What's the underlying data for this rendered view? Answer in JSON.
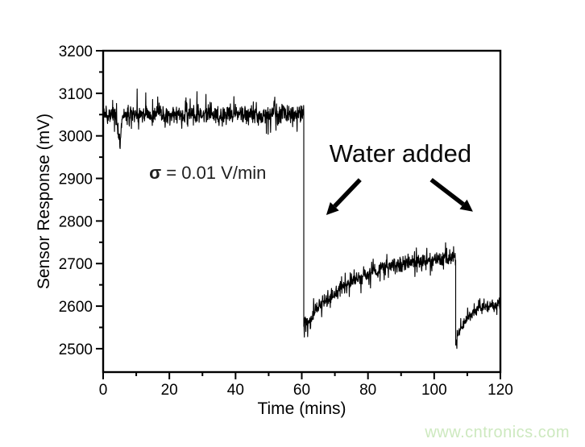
{
  "page": {
    "background": "#ffffff"
  },
  "watermark": {
    "text": "www.cntronics.com",
    "color": "#cde9bf"
  },
  "chart_data": {
    "type": "line",
    "title": "",
    "xlabel": "Time (mins)",
    "ylabel": "Sensor Response (mV)",
    "xlim": [
      0,
      120
    ],
    "ylim": [
      2445,
      3200
    ],
    "x_major_ticks": [
      0,
      20,
      40,
      60,
      80,
      100,
      120
    ],
    "x_minor_ticks": [
      10,
      30,
      50,
      70,
      90,
      110
    ],
    "y_major_ticks": [
      2500,
      2600,
      2700,
      2800,
      2900,
      3000,
      3100,
      3200
    ],
    "y_minor_ticks": [
      2550,
      2650,
      2750,
      2850,
      2950,
      3050,
      3150
    ],
    "grid": false,
    "legend": "none",
    "axis_color": "#000000",
    "line_color": "#000000",
    "series": [
      {
        "name": "sensor-response-trace",
        "description": "Noisy sensor voltage trace: stable baseline near 3050 mV, abrupt drop to ~2550 mV at t=61 min when water is added, slow noisy recovery to ~2720 mV, second abrupt drop to ~2510 mV at t=106.5 min, partial recovery to ~2605 mV by t=120 min.",
        "segments": [
          {
            "label": "baseline",
            "t_start": 0,
            "t_end": 60.6,
            "level": 3050,
            "noise": 30,
            "spike": 26,
            "dip": {
              "t": 5,
              "depth": 58,
              "width": 0.8
            }
          },
          {
            "label": "after-first-water-add",
            "t_start": 60.6,
            "t_end": 106.5,
            "level_start": 2552,
            "level_end": 2722,
            "tau": 15,
            "noise": 24,
            "spike": 22
          },
          {
            "label": "after-second-water-add",
            "t_start": 106.5,
            "t_end": 120,
            "level_start": 2512,
            "level_end": 2606,
            "tau": 3.5,
            "noise": 19,
            "spike": 16
          }
        ],
        "key_points": [
          {
            "t": 0,
            "v": 3050
          },
          {
            "t": 60,
            "v": 3050
          },
          {
            "t": 61,
            "v": 2550
          },
          {
            "t": 80,
            "v": 2670
          },
          {
            "t": 105,
            "v": 2715
          },
          {
            "t": 107,
            "v": 2510
          },
          {
            "t": 120,
            "v": 2605
          }
        ]
      }
    ],
    "annotations": {
      "sigma_label": {
        "bold_part": "σ",
        "rest_part": " = 0.01 V/min",
        "t": 13.9,
        "v": 2899
      },
      "water_label": {
        "text": "Water added",
        "t": 89.8,
        "v": 2939
      },
      "arrows": [
        {
          "from_t": 77.6,
          "from_v": 2897,
          "to_t": 67.4,
          "to_v": 2814
        },
        {
          "from_t": 99.1,
          "from_v": 2897,
          "to_t": 111.7,
          "to_v": 2822
        }
      ]
    }
  }
}
